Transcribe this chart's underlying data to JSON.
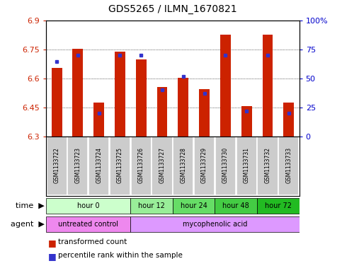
{
  "title": "GDS5265 / ILMN_1670821",
  "samples": [
    "GSM1133722",
    "GSM1133723",
    "GSM1133724",
    "GSM1133725",
    "GSM1133726",
    "GSM1133727",
    "GSM1133728",
    "GSM1133729",
    "GSM1133730",
    "GSM1133731",
    "GSM1133732",
    "GSM1133733"
  ],
  "transformed_counts": [
    6.655,
    6.755,
    6.475,
    6.74,
    6.7,
    6.555,
    6.605,
    6.545,
    6.83,
    6.455,
    6.83,
    6.475
  ],
  "percentile_ranks": [
    65,
    70,
    20,
    70,
    70,
    40,
    52,
    37,
    70,
    22,
    70,
    20
  ],
  "ymin": 6.3,
  "ymax": 6.9,
  "yticks": [
    6.3,
    6.45,
    6.6,
    6.75,
    6.9
  ],
  "ytick_labels": [
    "6.3",
    "6.45",
    "6.6",
    "6.75",
    "6.9"
  ],
  "y2min": 0,
  "y2max": 100,
  "y2ticks": [
    0,
    25,
    50,
    75,
    100
  ],
  "y2tick_labels": [
    "0",
    "25",
    "50",
    "75",
    "100%"
  ],
  "bar_color": "#cc2200",
  "blue_color": "#3333cc",
  "bar_bottom": 6.3,
  "time_groups": [
    {
      "label": "hour 0",
      "start": 0,
      "end": 4,
      "color": "#ccffcc"
    },
    {
      "label": "hour 12",
      "start": 4,
      "end": 6,
      "color": "#99ee99"
    },
    {
      "label": "hour 24",
      "start": 6,
      "end": 8,
      "color": "#66dd66"
    },
    {
      "label": "hour 48",
      "start": 8,
      "end": 10,
      "color": "#44cc44"
    },
    {
      "label": "hour 72",
      "start": 10,
      "end": 12,
      "color": "#22bb22"
    }
  ],
  "agent_groups": [
    {
      "label": "untreated control",
      "start": 0,
      "end": 4,
      "color": "#ee88ee"
    },
    {
      "label": "mycophenolic acid",
      "start": 4,
      "end": 12,
      "color": "#dd99ff"
    }
  ],
  "bar_color_legend": "#cc2200",
  "blue_color_legend": "#3333cc",
  "axis_label_color_left": "#cc2200",
  "axis_label_color_right": "#0000cc",
  "sample_box_color": "#cccccc",
  "grid_linestyle": "dotted"
}
